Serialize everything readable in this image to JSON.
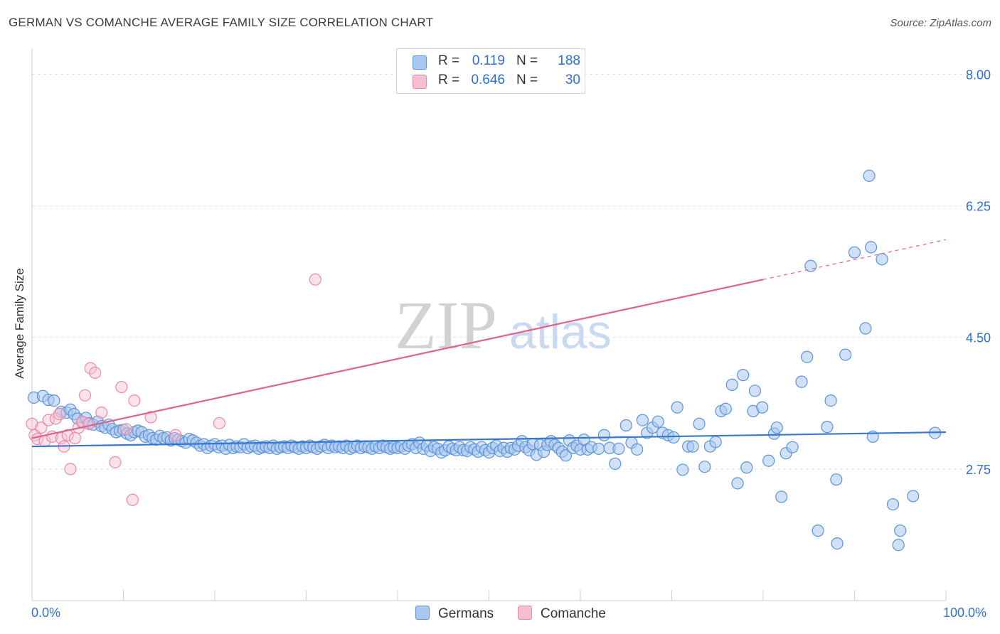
{
  "header": {
    "title": "GERMAN VS COMANCHE AVERAGE FAMILY SIZE CORRELATION CHART",
    "source": "Source: ZipAtlas.com"
  },
  "legend": {
    "rows": [
      {
        "r_label": "R =",
        "r_value": "0.119",
        "n_label": "N =",
        "n_value": "188"
      },
      {
        "r_label": "R =",
        "r_value": "0.646",
        "n_label": "N =",
        "n_value": "30"
      }
    ]
  },
  "bottom_legend": {
    "germans": "Germans",
    "comanche": "Comanche"
  },
  "watermark": {
    "zip": "ZIP",
    "atlas": "atlas"
  },
  "colors": {
    "germans_fill": "#a9c8f0",
    "germans_stroke": "#5d93d8",
    "germans_line": "#3777d0",
    "comanche_fill": "#f6bfd1",
    "comanche_stroke": "#e98aa9",
    "comanche_line": "#e0628c",
    "axis_label_blue": "#2f6fd1",
    "grid": "#e3e3e3"
  },
  "chart_data": {
    "type": "scatter",
    "title": "GERMAN VS COMANCHE AVERAGE FAMILY SIZE CORRELATION CHART",
    "xlabel": "",
    "ylabel": "Average Family Size",
    "xlim": [
      0,
      100
    ],
    "ylim": [
      1.0,
      8.25
    ],
    "x_tick_labels": [
      "0.0%",
      "100.0%"
    ],
    "y_ticks": [
      2.75,
      4.5,
      6.25,
      8.0
    ],
    "y_tick_labels": [
      "2.75",
      "4.50",
      "6.25",
      "8.00"
    ],
    "grid": true,
    "legend_position": "top-center",
    "series": [
      {
        "name": "Germans",
        "r": 0.119,
        "n": 188,
        "trend": {
          "x0": 0,
          "y0": 3.05,
          "x1": 100,
          "y1": 3.24
        },
        "points": [
          [
            0.2,
            3.7
          ],
          [
            1.2,
            3.72
          ],
          [
            1.8,
            3.67
          ],
          [
            2.4,
            3.66
          ],
          [
            3.2,
            3.51
          ],
          [
            3.8,
            3.5
          ],
          [
            4.2,
            3.54
          ],
          [
            4.6,
            3.48
          ],
          [
            5.0,
            3.42
          ],
          [
            5.5,
            3.37
          ],
          [
            5.9,
            3.43
          ],
          [
            6.3,
            3.36
          ],
          [
            6.7,
            3.34
          ],
          [
            7.2,
            3.38
          ],
          [
            7.6,
            3.32
          ],
          [
            8.0,
            3.3
          ],
          [
            8.4,
            3.34
          ],
          [
            8.8,
            3.28
          ],
          [
            9.2,
            3.24
          ],
          [
            9.6,
            3.26
          ],
          [
            10.0,
            3.27
          ],
          [
            10.4,
            3.22
          ],
          [
            10.8,
            3.2
          ],
          [
            11.2,
            3.24
          ],
          [
            11.6,
            3.26
          ],
          [
            12.0,
            3.24
          ],
          [
            12.4,
            3.18
          ],
          [
            12.8,
            3.2
          ],
          [
            13.2,
            3.16
          ],
          [
            13.6,
            3.14
          ],
          [
            14.0,
            3.19
          ],
          [
            14.4,
            3.16
          ],
          [
            14.8,
            3.17
          ],
          [
            15.2,
            3.13
          ],
          [
            15.6,
            3.16
          ],
          [
            16.0,
            3.14
          ],
          [
            16.4,
            3.12
          ],
          [
            16.8,
            3.1
          ],
          [
            17.2,
            3.15
          ],
          [
            17.6,
            3.13
          ],
          [
            18.0,
            3.1
          ],
          [
            18.4,
            3.06
          ],
          [
            18.8,
            3.08
          ],
          [
            19.2,
            3.03
          ],
          [
            19.6,
            3.06
          ],
          [
            20.0,
            3.08
          ],
          [
            20.4,
            3.04
          ],
          [
            20.8,
            3.06
          ],
          [
            21.2,
            3.02
          ],
          [
            21.6,
            3.07
          ],
          [
            22.0,
            3.03
          ],
          [
            22.4,
            3.05
          ],
          [
            22.8,
            3.04
          ],
          [
            23.2,
            3.08
          ],
          [
            23.6,
            3.03
          ],
          [
            24.0,
            3.05
          ],
          [
            24.4,
            3.06
          ],
          [
            24.8,
            3.02
          ],
          [
            25.2,
            3.04
          ],
          [
            25.6,
            3.05
          ],
          [
            26.0,
            3.03
          ],
          [
            26.4,
            3.06
          ],
          [
            26.8,
            3.02
          ],
          [
            27.2,
            3.04
          ],
          [
            27.6,
            3.05
          ],
          [
            28.0,
            3.03
          ],
          [
            28.4,
            3.06
          ],
          [
            28.8,
            3.04
          ],
          [
            29.2,
            3.02
          ],
          [
            29.6,
            3.05
          ],
          [
            30.0,
            3.03
          ],
          [
            30.4,
            3.06
          ],
          [
            30.8,
            3.04
          ],
          [
            31.2,
            3.02
          ],
          [
            31.6,
            3.05
          ],
          [
            32.0,
            3.07
          ],
          [
            32.4,
            3.03
          ],
          [
            32.8,
            3.06
          ],
          [
            33.2,
            3.04
          ],
          [
            33.6,
            3.05
          ],
          [
            34.0,
            3.03
          ],
          [
            34.4,
            3.06
          ],
          [
            34.8,
            3.02
          ],
          [
            35.2,
            3.04
          ],
          [
            35.6,
            3.06
          ],
          [
            36.0,
            3.03
          ],
          [
            36.4,
            3.05
          ],
          [
            36.8,
            3.04
          ],
          [
            37.2,
            3.02
          ],
          [
            37.6,
            3.05
          ],
          [
            38.0,
            3.03
          ],
          [
            38.4,
            3.06
          ],
          [
            38.8,
            3.04
          ],
          [
            39.2,
            3.02
          ],
          [
            39.6,
            3.04
          ],
          [
            40.0,
            3.03
          ],
          [
            40.4,
            3.05
          ],
          [
            40.8,
            3.02
          ],
          [
            41.2,
            3.06
          ],
          [
            41.6,
            3.08
          ],
          [
            42.0,
            3.03
          ],
          [
            42.4,
            3.1
          ],
          [
            42.8,
            3.02
          ],
          [
            43.2,
            3.06
          ],
          [
            43.6,
            2.99
          ],
          [
            44.0,
            3.04
          ],
          [
            44.4,
            3.02
          ],
          [
            44.8,
            2.97
          ],
          [
            45.2,
            3.0
          ],
          [
            45.6,
            3.05
          ],
          [
            46.0,
            3.02
          ],
          [
            46.4,
            3.0
          ],
          [
            46.8,
            3.04
          ],
          [
            47.2,
            3.0
          ],
          [
            47.6,
            2.99
          ],
          [
            48.0,
            3.04
          ],
          [
            48.4,
            3.01
          ],
          [
            48.8,
            2.98
          ],
          [
            49.2,
            3.04
          ],
          [
            49.6,
            3.0
          ],
          [
            50.0,
            2.97
          ],
          [
            50.4,
            3.03
          ],
          [
            50.8,
            3.06
          ],
          [
            51.2,
            2.99
          ],
          [
            51.6,
            3.03
          ],
          [
            52.0,
            2.98
          ],
          [
            52.4,
            3.03
          ],
          [
            52.8,
            3.01
          ],
          [
            53.2,
            3.06
          ],
          [
            53.6,
            3.12
          ],
          [
            54.0,
            3.04
          ],
          [
            54.4,
            3.0
          ],
          [
            54.8,
            3.08
          ],
          [
            55.2,
            2.94
          ],
          [
            55.6,
            3.07
          ],
          [
            56.0,
            2.98
          ],
          [
            56.4,
            3.07
          ],
          [
            56.8,
            3.12
          ],
          [
            57.2,
            3.07
          ],
          [
            57.6,
            3.03
          ],
          [
            58.0,
            2.98
          ],
          [
            58.4,
            2.93
          ],
          [
            58.8,
            3.13
          ],
          [
            59.2,
            3.03
          ],
          [
            59.6,
            3.06
          ],
          [
            60.0,
            3.01
          ],
          [
            60.4,
            3.14
          ],
          [
            60.8,
            3.01
          ],
          [
            61.2,
            3.04
          ],
          [
            62.0,
            3.02
          ],
          [
            62.6,
            3.2
          ],
          [
            63.2,
            3.03
          ],
          [
            63.8,
            2.82
          ],
          [
            64.2,
            3.02
          ],
          [
            65.0,
            3.33
          ],
          [
            65.6,
            3.1
          ],
          [
            66.2,
            3.01
          ],
          [
            66.8,
            3.4
          ],
          [
            67.3,
            3.23
          ],
          [
            67.9,
            3.3
          ],
          [
            68.5,
            3.38
          ],
          [
            69.0,
            3.23
          ],
          [
            69.6,
            3.2
          ],
          [
            70.2,
            3.17
          ],
          [
            70.6,
            3.57
          ],
          [
            71.2,
            2.74
          ],
          [
            71.8,
            3.05
          ],
          [
            72.3,
            3.05
          ],
          [
            73.0,
            3.35
          ],
          [
            73.6,
            2.78
          ],
          [
            74.2,
            3.05
          ],
          [
            74.8,
            3.11
          ],
          [
            75.4,
            3.52
          ],
          [
            75.9,
            3.55
          ],
          [
            76.6,
            3.87
          ],
          [
            77.2,
            2.56
          ],
          [
            77.8,
            4.0
          ],
          [
            78.2,
            2.77
          ],
          [
            78.9,
            3.52
          ],
          [
            79.1,
            3.79
          ],
          [
            79.9,
            3.57
          ],
          [
            80.6,
            2.86
          ],
          [
            81.2,
            3.22
          ],
          [
            81.5,
            3.3
          ],
          [
            82.0,
            2.38
          ],
          [
            82.5,
            2.96
          ],
          [
            83.2,
            3.04
          ],
          [
            84.2,
            3.91
          ],
          [
            84.8,
            4.24
          ],
          [
            85.2,
            5.45
          ],
          [
            86.0,
            1.93
          ],
          [
            87.0,
            3.31
          ],
          [
            87.4,
            3.66
          ],
          [
            88.0,
            2.61
          ],
          [
            88.1,
            1.76
          ],
          [
            89.0,
            4.27
          ],
          [
            90.0,
            5.63
          ],
          [
            91.2,
            4.62
          ],
          [
            91.8,
            5.7
          ],
          [
            92.0,
            3.18
          ],
          [
            93.0,
            5.54
          ],
          [
            94.2,
            2.28
          ],
          [
            95.0,
            1.93
          ],
          [
            94.8,
            1.74
          ],
          [
            96.4,
            2.39
          ],
          [
            98.8,
            3.23
          ],
          [
            91.6,
            6.65
          ]
        ]
      },
      {
        "name": "Comanche",
        "r": 0.646,
        "n": 30,
        "trend": {
          "x0": 0,
          "y0": 3.16,
          "x1": 80.0,
          "y1": 5.27
        },
        "trend_extension": {
          "x1": 100,
          "y1": 5.8
        },
        "points": [
          [
            0.0,
            3.35
          ],
          [
            0.3,
            3.2
          ],
          [
            0.6,
            3.15
          ],
          [
            1.0,
            3.3
          ],
          [
            1.4,
            3.12
          ],
          [
            1.8,
            3.4
          ],
          [
            2.2,
            3.18
          ],
          [
            2.6,
            3.42
          ],
          [
            3.0,
            3.48
          ],
          [
            3.2,
            3.16
          ],
          [
            3.5,
            3.05
          ],
          [
            3.9,
            3.2
          ],
          [
            4.2,
            2.75
          ],
          [
            4.7,
            3.16
          ],
          [
            5.1,
            3.3
          ],
          [
            5.5,
            3.38
          ],
          [
            5.8,
            3.73
          ],
          [
            6.2,
            3.35
          ],
          [
            6.4,
            4.09
          ],
          [
            6.9,
            4.03
          ],
          [
            7.6,
            3.5
          ],
          [
            9.1,
            2.84
          ],
          [
            9.8,
            3.84
          ],
          [
            10.3,
            3.28
          ],
          [
            11.0,
            2.34
          ],
          [
            11.2,
            3.66
          ],
          [
            13.0,
            3.44
          ],
          [
            15.7,
            3.2
          ],
          [
            20.5,
            3.36
          ],
          [
            31.0,
            5.27
          ]
        ]
      }
    ]
  }
}
